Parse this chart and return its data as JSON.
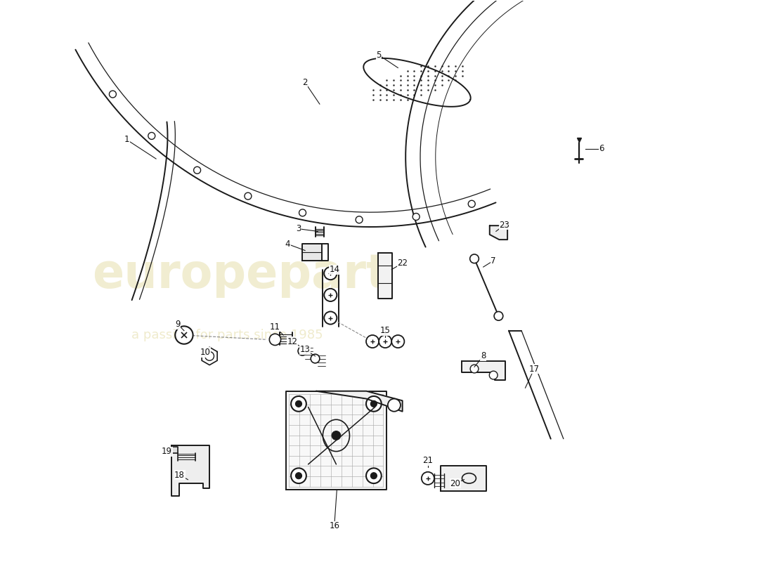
{
  "bg_color": "#ffffff",
  "line_color": "#1a1a1a",
  "label_color": "#111111",
  "watermark_text1": "europepart",
  "watermark_text2": "a passion for parts since 1985",
  "watermark_color": "#c8b84a",
  "fig_width": 11.0,
  "fig_height": 8.0,
  "dpi": 100,
  "xlim": [
    0,
    11
  ],
  "ylim": [
    0,
    8.8
  ],
  "labels": [
    [
      "1",
      1.45,
      6.55
    ],
    [
      "2",
      4.25,
      7.45
    ],
    [
      "3",
      4.15,
      5.18
    ],
    [
      "4",
      3.98,
      4.95
    ],
    [
      "5",
      5.42,
      7.92
    ],
    [
      "6",
      8.88,
      6.42
    ],
    [
      "7",
      7.22,
      4.68
    ],
    [
      "8",
      7.05,
      3.18
    ],
    [
      "9",
      2.22,
      3.58
    ],
    [
      "10",
      2.68,
      3.28
    ],
    [
      "11",
      3.78,
      3.62
    ],
    [
      "12",
      4.05,
      3.42
    ],
    [
      "13",
      4.25,
      3.28
    ],
    [
      "14",
      4.72,
      4.52
    ],
    [
      "15",
      5.52,
      3.55
    ],
    [
      "16",
      4.68,
      0.52
    ],
    [
      "17",
      7.85,
      2.95
    ],
    [
      "18",
      2.28,
      1.38
    ],
    [
      "19",
      2.08,
      1.68
    ],
    [
      "20",
      6.62,
      1.22
    ],
    [
      "21",
      6.18,
      1.52
    ],
    [
      "22",
      5.78,
      4.62
    ],
    [
      "23",
      7.38,
      5.22
    ]
  ]
}
